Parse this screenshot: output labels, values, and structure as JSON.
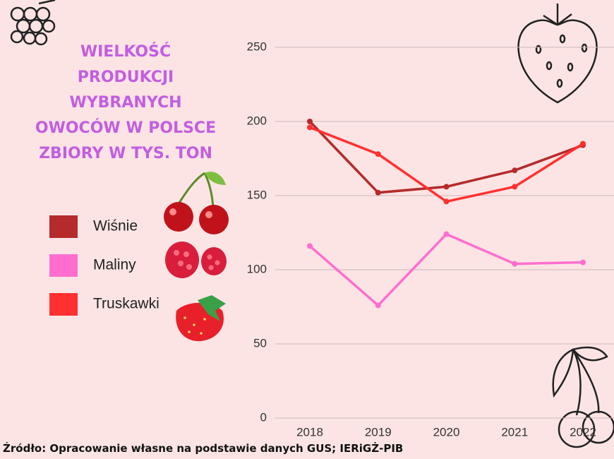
{
  "chart_data": {
    "type": "line",
    "title": [
      "WIELKOŚĆ",
      "PRODUKCJI",
      "WYBRANYCH",
      "OWOCÓW W POLSCE",
      "ZBIORY W TYS. TON"
    ],
    "categories": [
      "2018",
      "2019",
      "2020",
      "2021",
      "2022"
    ],
    "series": [
      {
        "name": "Wiśnie",
        "color": "#b52a2a",
        "values": [
          200,
          152,
          156,
          167,
          184
        ]
      },
      {
        "name": "Maliny",
        "color": "#ff6ecf",
        "values": [
          116,
          76,
          124,
          104,
          105
        ]
      },
      {
        "name": "Truskawki",
        "color": "#ff3030",
        "values": [
          196,
          178,
          146,
          156,
          185
        ]
      }
    ],
    "ylim": [
      0,
      250
    ],
    "yticks": [
      0,
      50,
      100,
      150,
      200,
      250
    ],
    "grid": true
  },
  "source": "Źródło: Opracowanie własne na podstawie danych GUS; IERiGŻ-PIB"
}
